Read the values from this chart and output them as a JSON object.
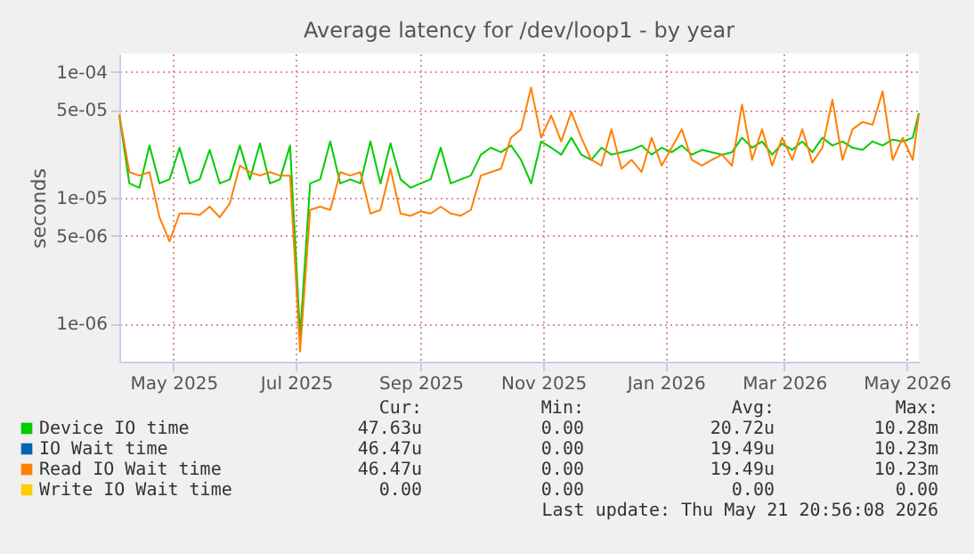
{
  "chart_data": {
    "type": "line",
    "title": "Average latency for /dev/loop1 - by year",
    "ylabel": "seconds",
    "log": true,
    "grid": true,
    "legend": "bottom",
    "marker": "none",
    "line_style": "solid",
    "x": [
      "2025-04-18",
      "2025-04-23",
      "2025-04-28",
      "2025-05-03",
      "2025-05-08",
      "2025-05-13",
      "2025-05-18",
      "2025-05-23",
      "2025-05-28",
      "2025-06-02",
      "2025-06-07",
      "2025-06-12",
      "2025-06-17",
      "2025-06-22",
      "2025-06-27",
      "2025-07-02",
      "2025-07-07",
      "2025-07-12",
      "2025-07-17",
      "2025-07-22",
      "2025-07-27",
      "2025-08-01",
      "2025-08-06",
      "2025-08-11",
      "2025-08-16",
      "2025-08-21",
      "2025-08-26",
      "2025-08-31",
      "2025-09-05",
      "2025-09-10",
      "2025-09-15",
      "2025-09-20",
      "2025-09-25",
      "2025-09-30",
      "2025-10-05",
      "2025-10-10",
      "2025-10-15",
      "2025-10-20",
      "2025-10-25",
      "2025-10-30",
      "2025-11-04",
      "2025-11-09",
      "2025-11-14",
      "2025-11-19",
      "2025-11-24",
      "2025-11-29",
      "2025-12-04",
      "2025-12-09",
      "2025-12-14",
      "2025-12-19",
      "2025-12-24",
      "2025-12-29",
      "2026-01-03",
      "2026-01-08",
      "2026-01-13",
      "2026-01-18",
      "2026-01-23",
      "2026-01-28",
      "2026-02-02",
      "2026-02-07",
      "2026-02-12",
      "2026-02-17",
      "2026-02-22",
      "2026-02-27",
      "2026-03-04",
      "2026-03-09",
      "2026-03-14",
      "2026-03-19",
      "2026-03-24",
      "2026-03-29",
      "2026-04-03",
      "2026-04-08",
      "2026-04-13",
      "2026-04-18",
      "2026-04-23",
      "2026-04-28",
      "2026-05-03",
      "2026-05-08",
      "2026-05-13",
      "2026-05-18",
      "2026-05-21"
    ],
    "xlim": [
      "2025-04-18",
      "2026-05-21"
    ],
    "xticks": [
      {
        "value": "2025-05-15",
        "label": "May 2025"
      },
      {
        "value": "2025-07-15",
        "label": "Jul 2025"
      },
      {
        "value": "2025-09-15",
        "label": "Sep 2025"
      },
      {
        "value": "2025-11-15",
        "label": "Nov 2025"
      },
      {
        "value": "2026-01-15",
        "label": "Jan 2026"
      },
      {
        "value": "2026-03-15",
        "label": "Mar 2026"
      },
      {
        "value": "2026-05-15",
        "label": "May 2026"
      }
    ],
    "ylim": [
      5e-07,
      0.00014
    ],
    "yticks": [
      {
        "value": 1e-06,
        "label": "1e-06"
      },
      {
        "value": 5e-06,
        "label": "5e-06"
      },
      {
        "value": 1e-05,
        "label": "1e-05"
      },
      {
        "value": 5e-05,
        "label": "5e-05"
      },
      {
        "value": 0.0001,
        "label": "1e-04"
      }
    ],
    "series": [
      {
        "name": "Device IO time",
        "color": "#00cc00",
        "values": [
          4.5e-05,
          1.3e-05,
          1.2e-05,
          2.6e-05,
          1.3e-05,
          1.4e-05,
          2.5e-05,
          1.3e-05,
          1.4e-05,
          2.4e-05,
          1.3e-05,
          1.4e-05,
          2.6e-05,
          1.4e-05,
          2.7e-05,
          1.3e-05,
          1.4e-05,
          2.6e-05,
          8e-07,
          1.3e-05,
          1.4e-05,
          2.8e-05,
          1.3e-05,
          1.4e-05,
          1.3e-05,
          2.8e-05,
          1.3e-05,
          2.7e-05,
          1.4e-05,
          1.2e-05,
          1.3e-05,
          1.4e-05,
          2.5e-05,
          1.3e-05,
          1.4e-05,
          1.5e-05,
          2.2e-05,
          2.5e-05,
          2.3e-05,
          2.6e-05,
          2e-05,
          1.3e-05,
          2.8e-05,
          2.5e-05,
          2.2e-05,
          3e-05,
          2.2e-05,
          2e-05,
          2.5e-05,
          2.2e-05,
          2.3e-05,
          2.4e-05,
          2.6e-05,
          2.2e-05,
          2.5e-05,
          2.3e-05,
          2.6e-05,
          2.2e-05,
          2.4e-05,
          2.3e-05,
          2.2e-05,
          2.3e-05,
          3e-05,
          2.5e-05,
          2.8e-05,
          2.2e-05,
          2.7e-05,
          2.4e-05,
          2.8e-05,
          2.3e-05,
          3e-05,
          2.6e-05,
          2.8e-05,
          2.5e-05,
          2.4e-05,
          2.8e-05,
          2.6e-05,
          2.9e-05,
          2.8e-05,
          3e-05,
          4.7e-05
        ]
      },
      {
        "name": "IO Wait time",
        "color": "#0066b3",
        "values": [
          null,
          null,
          null,
          null,
          null,
          null,
          null,
          null,
          null,
          null,
          null,
          null,
          null,
          null,
          null,
          null,
          null,
          null,
          null,
          null,
          null,
          null,
          null,
          null,
          null,
          null,
          null,
          null,
          null,
          null,
          null,
          null,
          null,
          null,
          null,
          null,
          null,
          null,
          null,
          null,
          null,
          null,
          null,
          null,
          null,
          null,
          null,
          null,
          null,
          null,
          null,
          null,
          null,
          null,
          null,
          null,
          null,
          null,
          null,
          null,
          null,
          null,
          null,
          null,
          null,
          null,
          null,
          null,
          null,
          null,
          null,
          null,
          null,
          null,
          null,
          null,
          null,
          null,
          null,
          null,
          null
        ]
      },
      {
        "name": "Read IO Wait time",
        "color": "#ff8000",
        "values": [
          4.6e-05,
          1.6e-05,
          1.5e-05,
          1.6e-05,
          7e-06,
          4.5e-06,
          7.5e-06,
          7.5e-06,
          7.3e-06,
          8.5e-06,
          7e-06,
          9e-06,
          1.8e-05,
          1.6e-05,
          1.5e-05,
          1.6e-05,
          1.5e-05,
          1.5e-05,
          6e-07,
          8e-06,
          8.5e-06,
          8e-06,
          1.6e-05,
          1.5e-05,
          1.6e-05,
          7.5e-06,
          8e-06,
          1.7e-05,
          7.5e-06,
          7.2e-06,
          7.8e-06,
          7.5e-06,
          8.5e-06,
          7.5e-06,
          7.2e-06,
          8e-06,
          1.5e-05,
          1.6e-05,
          1.7e-05,
          3e-05,
          3.5e-05,
          7.5e-05,
          3e-05,
          4.5e-05,
          2.8e-05,
          4.8e-05,
          3e-05,
          2e-05,
          1.8e-05,
          3.5e-05,
          1.7e-05,
          2e-05,
          1.6e-05,
          3e-05,
          1.8e-05,
          2.5e-05,
          3.5e-05,
          2e-05,
          1.8e-05,
          2e-05,
          2.2e-05,
          1.8e-05,
          5.5e-05,
          2e-05,
          3.5e-05,
          1.8e-05,
          3e-05,
          2e-05,
          3.5e-05,
          1.9e-05,
          2.5e-05,
          6e-05,
          2e-05,
          3.5e-05,
          4e-05,
          3.8e-05,
          7e-05,
          2e-05,
          3e-05,
          2e-05,
          4.6e-05
        ]
      },
      {
        "name": "Write IO Wait time",
        "color": "#ffcc00",
        "values": [
          null,
          null,
          null,
          null,
          null,
          null,
          null,
          null,
          null,
          null,
          null,
          null,
          null,
          null,
          null,
          null,
          null,
          null,
          null,
          null,
          null,
          null,
          null,
          null,
          null,
          null,
          null,
          null,
          null,
          null,
          null,
          null,
          null,
          null,
          null,
          null,
          null,
          null,
          null,
          null,
          null,
          null,
          null,
          null,
          null,
          null,
          null,
          null,
          null,
          null,
          null,
          null,
          null,
          null,
          null,
          null,
          null,
          null,
          null,
          null,
          null,
          null,
          null,
          null,
          null,
          null,
          null,
          null,
          null,
          null,
          null,
          null,
          null,
          null,
          null,
          null,
          null,
          null,
          null,
          null,
          null
        ]
      }
    ],
    "annotations": [
      "Cur:",
      "Min:",
      "Avg:",
      "Max:",
      "47.63u",
      "0.00",
      "20.72u",
      "10.28m",
      "46.47u",
      "0.00",
      "19.49u",
      "10.23m",
      "46.47u",
      "0.00",
      "19.49u",
      "10.23m",
      "0.00",
      "0.00",
      "0.00",
      "0.00",
      "Last update: Thu May 21 20:56:08 2026"
    ]
  }
}
